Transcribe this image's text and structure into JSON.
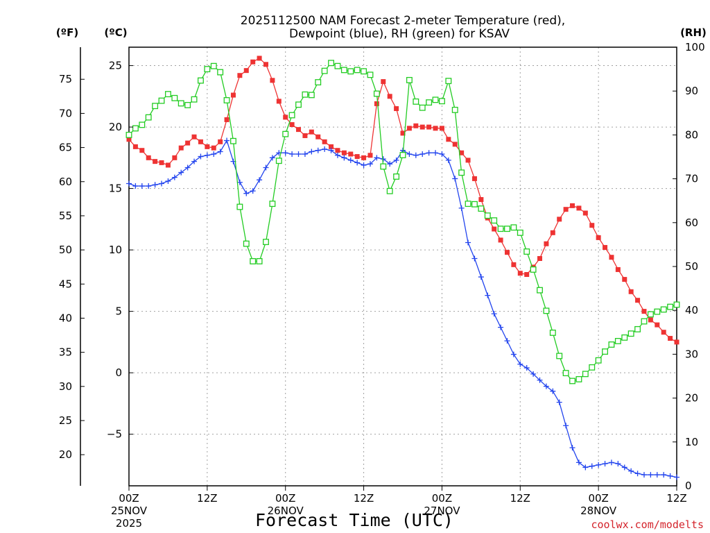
{
  "chart_data": {
    "type": "line",
    "title_line1": "2025112500 NAM Forecast 2-meter Temperature (red),",
    "title_line2": "Dewpoint (blue), RH (green) for KSAV",
    "xlabel": "Forecast Time (UTC)",
    "credit": "coolwx.com/modelts",
    "axis_units": {
      "fahrenheit": "(ºF)",
      "celsius": "(ºC)",
      "rh": "(RH)"
    },
    "x_ticks": [
      {
        "hour": 0,
        "lines": [
          "00Z",
          "25NOV",
          "2025"
        ]
      },
      {
        "hour": 12,
        "lines": [
          "12Z"
        ]
      },
      {
        "hour": 24,
        "lines": [
          "00Z",
          "26NOV"
        ]
      },
      {
        "hour": 36,
        "lines": [
          "12Z"
        ]
      },
      {
        "hour": 48,
        "lines": [
          "00Z",
          "27NOV"
        ]
      },
      {
        "hour": 60,
        "lines": [
          "12Z"
        ]
      },
      {
        "hour": 72,
        "lines": [
          "00Z",
          "28NOV"
        ]
      },
      {
        "hour": 84,
        "lines": [
          "12Z"
        ]
      }
    ],
    "celsius_ticks": [
      "25",
      "20",
      "15",
      "10",
      "5",
      "0",
      "−5"
    ],
    "celsius_tick_values": [
      25,
      20,
      15,
      10,
      5,
      0,
      -5
    ],
    "fahrenheit_ticks": [
      "75",
      "70",
      "65",
      "60",
      "55",
      "50",
      "45",
      "40",
      "35",
      "30",
      "25",
      "20"
    ],
    "fahrenheit_tick_values": [
      75,
      70,
      65,
      60,
      55,
      50,
      45,
      40,
      35,
      30,
      25,
      20
    ],
    "rh_ticks": [
      "100",
      "90",
      "80",
      "70",
      "60",
      "50",
      "40",
      "30",
      "20",
      "10",
      "0"
    ],
    "rh_tick_values": [
      100,
      90,
      80,
      70,
      60,
      50,
      40,
      30,
      20,
      10,
      0
    ],
    "x_range_hours": [
      0,
      84
    ],
    "celsius_range": [
      -9.2,
      26.5
    ],
    "rh_range": [
      0,
      100
    ],
    "grid": true,
    "colors": {
      "temperature": "#ee3333",
      "dewpoint": "#2244ee",
      "rh": "#22cc22",
      "credit": "#d4232b"
    },
    "series": [
      {
        "id": "temperature",
        "marker": "filled-square",
        "unit": "celsius",
        "points": [
          [
            0,
            19
          ],
          [
            1,
            18.4
          ],
          [
            2,
            18.1
          ],
          [
            3,
            17.5
          ],
          [
            4,
            17.2
          ],
          [
            5,
            17.1
          ],
          [
            6,
            16.9
          ],
          [
            7,
            17.5
          ],
          [
            8,
            18.3
          ],
          [
            9,
            18.7
          ],
          [
            10,
            19.2
          ],
          [
            11,
            18.8
          ],
          [
            12,
            18.4
          ],
          [
            13,
            18.3
          ],
          [
            14,
            18.8
          ],
          [
            15,
            20.6
          ],
          [
            16,
            22.6
          ],
          [
            17,
            24.2
          ],
          [
            18,
            24.6
          ],
          [
            19,
            25.3
          ],
          [
            20,
            25.6
          ],
          [
            21,
            25.1
          ],
          [
            22,
            23.8
          ],
          [
            23,
            22.1
          ],
          [
            24,
            20.8
          ],
          [
            25,
            20.2
          ],
          [
            26,
            19.8
          ],
          [
            27,
            19.3
          ],
          [
            28,
            19.6
          ],
          [
            29,
            19.2
          ],
          [
            30,
            18.8
          ],
          [
            31,
            18.4
          ],
          [
            32,
            18.1
          ],
          [
            33,
            17.9
          ],
          [
            34,
            17.8
          ],
          [
            35,
            17.6
          ],
          [
            36,
            17.5
          ],
          [
            37,
            17.7
          ],
          [
            38,
            21.9
          ],
          [
            39,
            23.7
          ],
          [
            40,
            22.5
          ],
          [
            41,
            21.5
          ],
          [
            42,
            19.5
          ],
          [
            43,
            19.9
          ],
          [
            44,
            20.1
          ],
          [
            45,
            20
          ],
          [
            46,
            20
          ],
          [
            47,
            19.9
          ],
          [
            48,
            19.9
          ],
          [
            49,
            19
          ],
          [
            50,
            18.6
          ],
          [
            51,
            17.9
          ],
          [
            52,
            17.3
          ],
          [
            53,
            15.8
          ],
          [
            54,
            14.1
          ],
          [
            55,
            12.6
          ],
          [
            56,
            11.7
          ],
          [
            57,
            10.8
          ],
          [
            58,
            9.8
          ],
          [
            59,
            8.8
          ],
          [
            60,
            8.1
          ],
          [
            61,
            8
          ],
          [
            62,
            8.6
          ],
          [
            63,
            9.3
          ],
          [
            64,
            10.5
          ],
          [
            65,
            11.4
          ],
          [
            66,
            12.5
          ],
          [
            67,
            13.3
          ],
          [
            68,
            13.6
          ],
          [
            69,
            13.4
          ],
          [
            70,
            13
          ],
          [
            71,
            12
          ],
          [
            72,
            11
          ],
          [
            73,
            10.2
          ],
          [
            74,
            9.4
          ],
          [
            75,
            8.4
          ],
          [
            76,
            7.6
          ],
          [
            77,
            6.6
          ],
          [
            78,
            5.9
          ],
          [
            79,
            5
          ],
          [
            80,
            4.3
          ],
          [
            81,
            3.9
          ],
          [
            82,
            3.3
          ],
          [
            83,
            2.8
          ],
          [
            84,
            2.5
          ]
        ]
      },
      {
        "id": "dewpoint",
        "marker": "plus",
        "unit": "celsius",
        "points": [
          [
            0,
            15.4
          ],
          [
            1,
            15.2
          ],
          [
            2,
            15.2
          ],
          [
            3,
            15.2
          ],
          [
            4,
            15.3
          ],
          [
            5,
            15.4
          ],
          [
            6,
            15.6
          ],
          [
            7,
            15.9
          ],
          [
            8,
            16.3
          ],
          [
            9,
            16.7
          ],
          [
            10,
            17.2
          ],
          [
            11,
            17.6
          ],
          [
            12,
            17.7
          ],
          [
            13,
            17.8
          ],
          [
            14,
            18
          ],
          [
            15,
            18.9
          ],
          [
            16,
            17.2
          ],
          [
            17,
            15.5
          ],
          [
            18,
            14.6
          ],
          [
            19,
            14.8
          ],
          [
            20,
            15.7
          ],
          [
            21,
            16.7
          ],
          [
            22,
            17.5
          ],
          [
            23,
            17.9
          ],
          [
            24,
            17.9
          ],
          [
            25,
            17.8
          ],
          [
            26,
            17.8
          ],
          [
            27,
            17.8
          ],
          [
            28,
            18
          ],
          [
            29,
            18.1
          ],
          [
            30,
            18.2
          ],
          [
            31,
            18.1
          ],
          [
            32,
            17.7
          ],
          [
            33,
            17.5
          ],
          [
            34,
            17.3
          ],
          [
            35,
            17.1
          ],
          [
            36,
            16.9
          ],
          [
            37,
            17
          ],
          [
            38,
            17.5
          ],
          [
            39,
            17.4
          ],
          [
            40,
            17
          ],
          [
            41,
            17.3
          ],
          [
            42,
            18.1
          ],
          [
            43,
            17.8
          ],
          [
            44,
            17.7
          ],
          [
            45,
            17.8
          ],
          [
            46,
            17.9
          ],
          [
            47,
            17.9
          ],
          [
            48,
            17.8
          ],
          [
            49,
            17.3
          ],
          [
            50,
            15.8
          ],
          [
            51,
            13.4
          ],
          [
            52,
            10.6
          ],
          [
            53,
            9.3
          ],
          [
            54,
            7.8
          ],
          [
            55,
            6.3
          ],
          [
            56,
            4.8
          ],
          [
            57,
            3.7
          ],
          [
            58,
            2.6
          ],
          [
            59,
            1.5
          ],
          [
            60,
            0.7
          ],
          [
            61,
            0.4
          ],
          [
            62,
            -0.1
          ],
          [
            63,
            -0.6
          ],
          [
            64,
            -1.1
          ],
          [
            65,
            -1.5
          ],
          [
            66,
            -2.4
          ],
          [
            67,
            -4.3
          ],
          [
            68,
            -6.1
          ],
          [
            69,
            -7.3
          ],
          [
            70,
            -7.7
          ],
          [
            71,
            -7.6
          ],
          [
            72,
            -7.5
          ],
          [
            73,
            -7.4
          ],
          [
            74,
            -7.3
          ],
          [
            75,
            -7.4
          ],
          [
            76,
            -7.7
          ],
          [
            77,
            -8
          ],
          [
            78,
            -8.2
          ],
          [
            79,
            -8.3
          ],
          [
            80,
            -8.3
          ],
          [
            81,
            -8.3
          ],
          [
            82,
            -8.3
          ],
          [
            83,
            -8.4
          ],
          [
            84,
            -8.5
          ]
        ]
      },
      {
        "id": "rh",
        "marker": "open-square",
        "unit": "rh",
        "points": [
          [
            0,
            80
          ],
          [
            1,
            81.5
          ],
          [
            2,
            82.3
          ],
          [
            3,
            84
          ],
          [
            4,
            86.6
          ],
          [
            5,
            87.8
          ],
          [
            6,
            89.3
          ],
          [
            7,
            88.4
          ],
          [
            8,
            87.2
          ],
          [
            9,
            86.8
          ],
          [
            10,
            88.1
          ],
          [
            11,
            92.4
          ],
          [
            12,
            95
          ],
          [
            13,
            95.7
          ],
          [
            14,
            94.3
          ],
          [
            15,
            87.9
          ],
          [
            16,
            78.6
          ],
          [
            17,
            63.6
          ],
          [
            18,
            55.2
          ],
          [
            19,
            51.2
          ],
          [
            20,
            51.2
          ],
          [
            21,
            55.6
          ],
          [
            22,
            64.3
          ],
          [
            23,
            74.1
          ],
          [
            24,
            80.2
          ],
          [
            25,
            84.5
          ],
          [
            26,
            86.9
          ],
          [
            27,
            89.2
          ],
          [
            28,
            89.1
          ],
          [
            29,
            92
          ],
          [
            30,
            94.6
          ],
          [
            31,
            96.4
          ],
          [
            32,
            95.7
          ],
          [
            33,
            94.8
          ],
          [
            34,
            94.5
          ],
          [
            35,
            94.8
          ],
          [
            36,
            94.5
          ],
          [
            37,
            93.7
          ],
          [
            38,
            89.4
          ],
          [
            39,
            72.8
          ],
          [
            40,
            67.2
          ],
          [
            41,
            70.5
          ],
          [
            42,
            75.4
          ],
          [
            43,
            92.5
          ],
          [
            44,
            87.6
          ],
          [
            45,
            86.2
          ],
          [
            46,
            87.4
          ],
          [
            47,
            88
          ],
          [
            48,
            87.7
          ],
          [
            49,
            92.3
          ],
          [
            50,
            85.7
          ],
          [
            51,
            71.4
          ],
          [
            52,
            64.3
          ],
          [
            53,
            64.2
          ],
          [
            54,
            63.2
          ],
          [
            55,
            61.6
          ],
          [
            56,
            60.5
          ],
          [
            57,
            58.6
          ],
          [
            58,
            58.6
          ],
          [
            59,
            58.9
          ],
          [
            60,
            57.7
          ],
          [
            61,
            53.4
          ],
          [
            62,
            49.3
          ],
          [
            63,
            44.6
          ],
          [
            64,
            39.9
          ],
          [
            65,
            34.9
          ],
          [
            66,
            29.6
          ],
          [
            67,
            25.7
          ],
          [
            68,
            23.9
          ],
          [
            69,
            24.3
          ],
          [
            70,
            25.5
          ],
          [
            71,
            27
          ],
          [
            72,
            28.6
          ],
          [
            73,
            30.6
          ],
          [
            74,
            32.2
          ],
          [
            75,
            33
          ],
          [
            76,
            33.8
          ],
          [
            77,
            34.7
          ],
          [
            78,
            35.7
          ],
          [
            79,
            37.5
          ],
          [
            80,
            39.1
          ],
          [
            81,
            39.7
          ],
          [
            82,
            40.2
          ],
          [
            83,
            40.8
          ],
          [
            84,
            41.3
          ]
        ]
      }
    ]
  }
}
